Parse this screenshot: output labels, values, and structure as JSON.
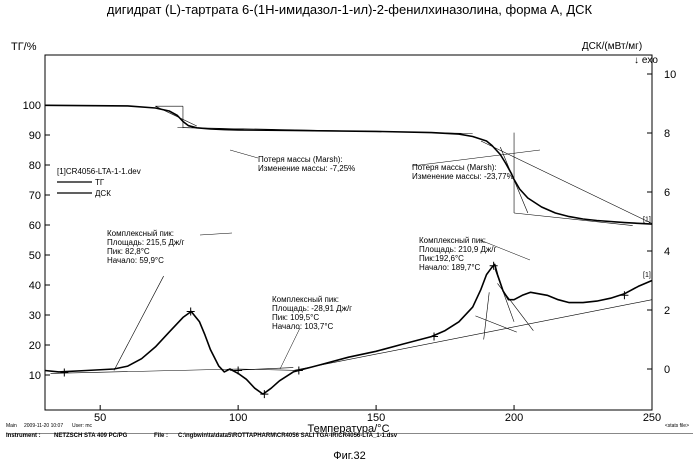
{
  "title": "дигидрат (L)-тартрата 6-(1Н-имидазол-1-ил)-2-фенилхиназолина, форма А, ДСК",
  "chart_data": {
    "type": "line",
    "x_axis": {
      "label": "Температура/°C",
      "range": [
        30,
        250
      ],
      "ticks": [
        50,
        100,
        150,
        200,
        250
      ]
    },
    "y_axis_left": {
      "label": "ТГ/%",
      "range": [
        10,
        100
      ],
      "ticks": [
        10,
        20,
        30,
        40,
        50,
        60,
        70,
        80,
        90,
        100
      ]
    },
    "y_axis_right": {
      "label": "ДСК/(мВт/мг)",
      "arrow": "↓ exo",
      "range": [
        -0.6,
        10.5
      ],
      "ticks": [
        0,
        2,
        4,
        6,
        8,
        10
      ]
    },
    "grid": false,
    "legend": {
      "file": "[1]CR4056-LTA-1-1.dev",
      "entries": [
        {
          "name": "ТГ",
          "color": "#000000"
        },
        {
          "name": "ДСК",
          "color": "#000000"
        }
      ]
    },
    "series": [
      {
        "name": "ТГ",
        "axis": "left",
        "x": [
          30,
          60,
          70,
          75,
          78,
          80,
          82,
          85,
          90,
          95,
          100,
          120,
          150,
          170,
          180,
          185,
          190,
          192,
          195,
          197,
          199,
          200,
          202,
          205,
          210,
          215,
          220,
          225,
          230,
          240,
          250
        ],
        "y": [
          99.9,
          99.7,
          99.0,
          98.0,
          96.5,
          94.5,
          93.1,
          92.4,
          92.0,
          91.8,
          91.7,
          91.5,
          91.2,
          90.8,
          90.3,
          89.5,
          88.0,
          86.5,
          83.5,
          80.5,
          77.2,
          75.2,
          72.0,
          69.0,
          66.0,
          64.0,
          62.8,
          62.0,
          61.5,
          60.8,
          60.3
        ]
      },
      {
        "name": "ДСК",
        "axis": "right",
        "x": [
          30,
          35,
          45,
          55,
          60,
          65,
          70,
          75,
          80,
          83,
          86,
          88,
          90,
          93,
          95,
          97,
          100,
          103,
          106,
          109,
          112,
          115,
          120,
          130,
          140,
          150,
          160,
          170,
          175,
          180,
          185,
          188,
          190,
          192,
          193,
          194,
          196,
          198,
          200,
          203,
          206,
          209,
          212,
          216,
          220,
          225,
          230,
          235,
          240,
          245,
          250
        ],
        "y": [
          -0.05,
          -0.1,
          -0.05,
          0.0,
          0.1,
          0.35,
          0.75,
          1.25,
          1.75,
          1.95,
          1.6,
          1.15,
          0.65,
          0.1,
          -0.1,
          0.0,
          -0.15,
          -0.35,
          -0.65,
          -0.85,
          -0.65,
          -0.4,
          -0.1,
          0.15,
          0.4,
          0.6,
          0.85,
          1.1,
          1.3,
          1.6,
          2.1,
          2.7,
          3.2,
          3.45,
          3.55,
          3.2,
          2.65,
          2.35,
          2.35,
          2.5,
          2.6,
          2.55,
          2.5,
          2.35,
          2.25,
          2.25,
          2.3,
          2.4,
          2.55,
          2.8,
          3.0
        ]
      }
    ],
    "annotations": {
      "tg_step1": [
        "Потеря массы (Marsh):",
        "Изменение массы: -7,25%"
      ],
      "tg_step2": [
        "Потеря массы (Marsh):",
        "Изменение массы: -23,77%"
      ],
      "dsc_peak1": [
        "Комплексный пик:",
        "Площадь: 215,5 Дж/г",
        "Пик: 82,8°C",
        "Начало: 59,9°C"
      ],
      "dsc_peak2": [
        "Комплексный пик:",
        "Площадь: -28,91 Дж/г",
        "Пик: 109,5°C",
        "Начало: 103,7°C"
      ],
      "dsc_peak3": [
        "Комплексный пик:",
        "Площадь: 210,9 Дж/г",
        "Пик:192,6°C",
        "Начало: 189,7°C"
      ],
      "curve_marker": "[1]"
    }
  },
  "footer": {
    "main_label": "Main",
    "date": "2009-11-20 10:07",
    "user": "User: mc",
    "stats_label": "<stats file>",
    "instrument_label": "Instrument :",
    "instrument": "NETZSCH STA 409 PC/PG",
    "file_label": "File :",
    "file": "C:\\ngbwin\\ta\\data5\\ROTTAPHARM\\CR4056 SALI TGA-IR\\CR4056-LTA_1-1.dsv"
  },
  "figure_caption": "Фиг.32"
}
